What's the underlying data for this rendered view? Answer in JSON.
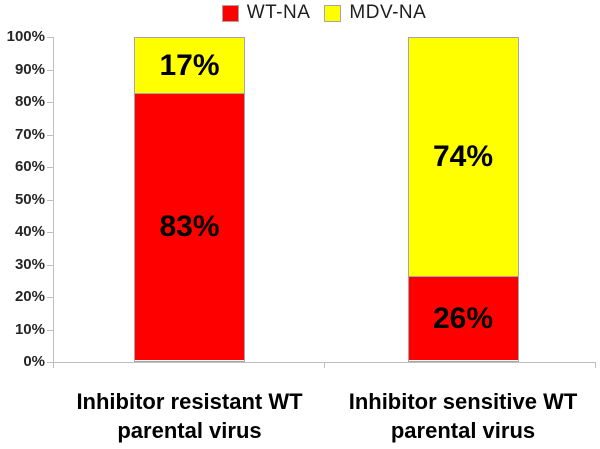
{
  "chart_data": {
    "type": "bar",
    "stacked": true,
    "percent_stacked": true,
    "title": "",
    "xlabel": "",
    "ylabel": "",
    "ylim": [
      0,
      100
    ],
    "ytick_step": 10,
    "ytick_labels": [
      "0%",
      "10%",
      "20%",
      "30%",
      "40%",
      "50%",
      "60%",
      "70%",
      "80%",
      "90%",
      "100%"
    ],
    "grid": false,
    "legend_position": "top",
    "categories": [
      "Inhibitor resistant WT parental virus",
      "Inhibitor sensitive WT parental virus"
    ],
    "category_lines": [
      [
        "Inhibitor resistant WT",
        "parental virus"
      ],
      [
        "Inhibitor sensitive WT",
        "parental virus"
      ]
    ],
    "series": [
      {
        "name": "WT-NA",
        "color": "#ff0000",
        "values": [
          83,
          26
        ],
        "labels": [
          "83%",
          "26%"
        ]
      },
      {
        "name": "MDV-NA",
        "color": "#ffff00",
        "values": [
          17,
          74
        ],
        "labels": [
          "17%",
          "74%"
        ]
      }
    ],
    "colors": {
      "bar_border": "#a6a6a6",
      "axis": "#bfbfbf",
      "axis_text": "#262626",
      "data_label_text": "#000000"
    }
  }
}
